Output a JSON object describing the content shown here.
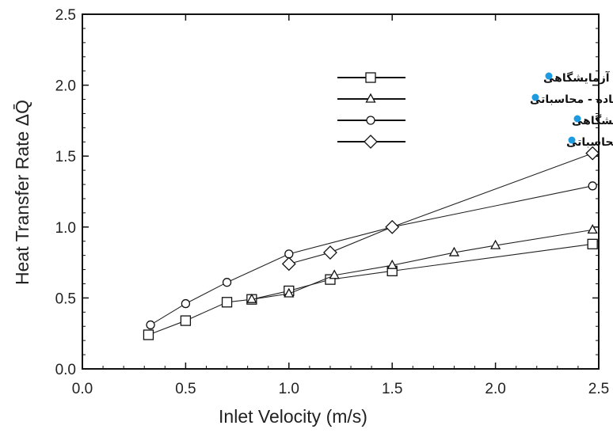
{
  "chart_data": {
    "type": "line",
    "xlabel": "Inlet Velocity (m/s)",
    "ylabel": "Heat Transfer Rate ΔQ̄",
    "xlim": [
      0,
      2.5
    ],
    "ylim": [
      0,
      2.5
    ],
    "xticks": [
      "0.0",
      "0.5",
      "1.0",
      "1.5",
      "2.0",
      "2.5"
    ],
    "yticks": [
      "0.0",
      "0.5",
      "1.0",
      "1.5",
      "2.0",
      "2.5"
    ],
    "grid": false,
    "legend_position": "top-right",
    "legend_bullet_color": "#1e9be0",
    "series": [
      {
        "name": "فین ساده - آزمایشگاهی",
        "marker": "square",
        "x": [
          0.32,
          0.5,
          0.7,
          0.82,
          1.0,
          1.2,
          1.5,
          2.47
        ],
        "y": [
          0.24,
          0.34,
          0.47,
          0.49,
          0.55,
          0.63,
          0.69,
          0.88
        ]
      },
      {
        "name": "فین ساده - محاسباتی",
        "marker": "triangle",
        "x": [
          0.82,
          1.0,
          1.22,
          1.5,
          1.8,
          2.0,
          2.47
        ],
        "y": [
          0.49,
          0.53,
          0.66,
          0.73,
          0.82,
          0.87,
          0.98
        ]
      },
      {
        "name": "فین توربولانس - آزمایشگاهی",
        "marker": "circle",
        "x": [
          0.33,
          0.5,
          0.7,
          1.0,
          1.5,
          2.47
        ],
        "y": [
          0.31,
          0.46,
          0.61,
          0.81,
          1.0,
          1.29
        ]
      },
      {
        "name": "فین توربولانس - محاسباتی",
        "marker": "diamond",
        "x": [
          1.0,
          1.2,
          1.5,
          2.47
        ],
        "y": [
          0.74,
          0.82,
          1.0,
          1.52
        ]
      }
    ]
  }
}
